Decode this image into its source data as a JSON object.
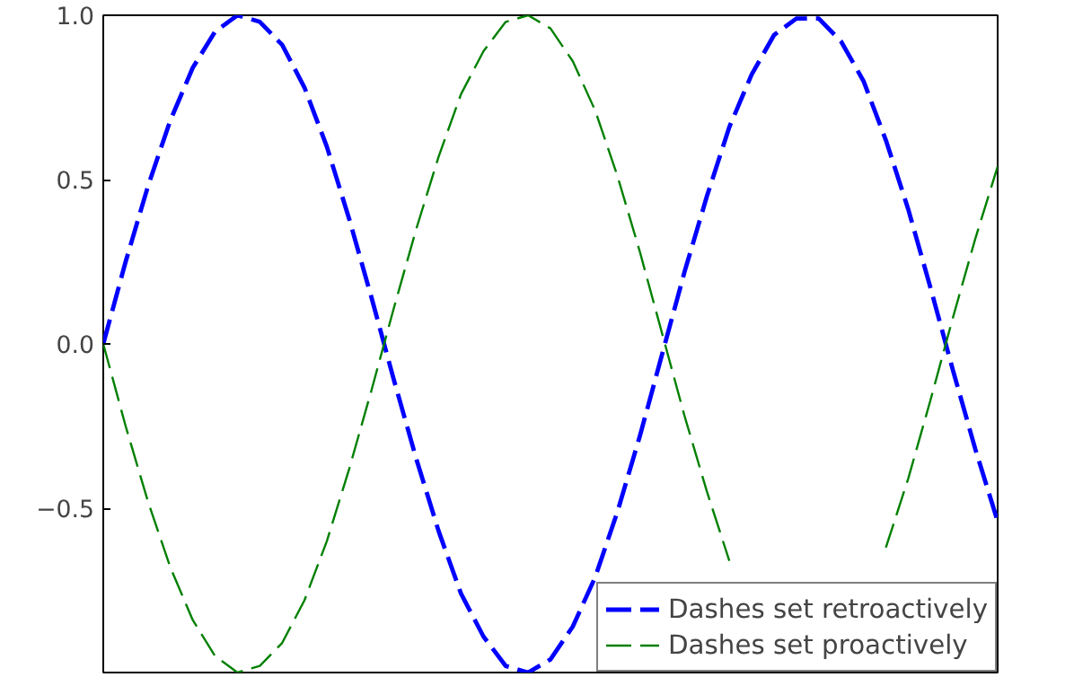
{
  "chart_data": {
    "type": "line",
    "categories": [
      null,
      null,
      null,
      null,
      null,
      null,
      null,
      null,
      null,
      null,
      null,
      null,
      null,
      null,
      null,
      null,
      null,
      null,
      null,
      null,
      null,
      null,
      null,
      null,
      null,
      null,
      null,
      null,
      null,
      null,
      null,
      null,
      null,
      null,
      null,
      null,
      null,
      null,
      null,
      null,
      null
    ],
    "series": [
      {
        "name": "Dashes set retroactively",
        "color": "#0000ff",
        "line_style": "dashed",
        "values": [
          0,
          0.25,
          0.48,
          0.68,
          0.84,
          0.95,
          1.0,
          0.98,
          0.91,
          0.78,
          0.6,
          0.38,
          0.14,
          -0.11,
          -0.35,
          -0.57,
          -0.76,
          -0.89,
          -0.98,
          -1.0,
          -0.96,
          -0.86,
          -0.71,
          -0.51,
          -0.28,
          -0.03,
          0.22,
          0.45,
          0.66,
          0.82,
          0.94,
          0.99,
          0.99,
          0.92,
          0.8,
          0.62,
          0.41,
          0.17,
          -0.08,
          -0.32,
          -0.54
        ]
      },
      {
        "name": "Dashes set proactively",
        "color": "#008000",
        "line_style": "dashed",
        "values": [
          0,
          -0.25,
          -0.48,
          -0.68,
          -0.84,
          -0.95,
          -1.0,
          -0.98,
          -0.91,
          -0.78,
          -0.6,
          -0.38,
          -0.14,
          0.11,
          0.35,
          0.57,
          0.76,
          0.89,
          0.98,
          1.0,
          0.96,
          0.86,
          0.71,
          0.51,
          0.28,
          0.03,
          -0.22,
          -0.45,
          -0.66,
          null,
          null,
          null,
          null,
          null,
          null,
          -0.62,
          -0.41,
          -0.17,
          0.08,
          0.32,
          0.54
        ]
      }
    ],
    "ylim": [
      -1,
      1
    ],
    "yticks": [
      {
        "value": 1,
        "label": "1.0"
      },
      {
        "value": 0.5,
        "label": "0.5"
      },
      {
        "value": 0,
        "label": "0.0"
      },
      {
        "value": -0.5,
        "label": "−0.5"
      }
    ],
    "tick_labels": "y",
    "grid": false,
    "legend": "bottom right"
  }
}
